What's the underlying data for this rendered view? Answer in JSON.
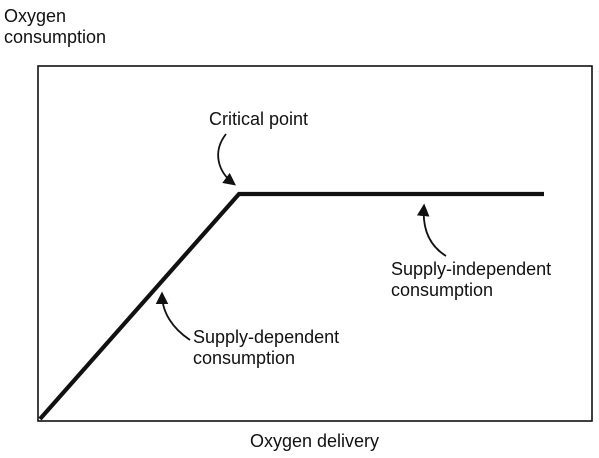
{
  "diagram": {
    "y_axis_label": [
      "Oxygen",
      "consumption"
    ],
    "x_axis_label": "Oxygen delivery",
    "annotations": {
      "critical_point": [
        "Critical point"
      ],
      "supply_dependent": [
        "Supply-dependent",
        "consumption"
      ],
      "supply_independent": [
        "Supply-independent",
        "consumption"
      ]
    },
    "colors": {
      "line": "#111111",
      "frame": "#111111",
      "background": "#ffffff"
    },
    "curve": {
      "description_points": [
        {
          "name": "origin",
          "x": 0,
          "y": 0
        },
        {
          "name": "critical",
          "x": 0.39,
          "y": 0.62
        },
        {
          "name": "end",
          "x": 1.0,
          "y": 0.62
        }
      ]
    }
  }
}
